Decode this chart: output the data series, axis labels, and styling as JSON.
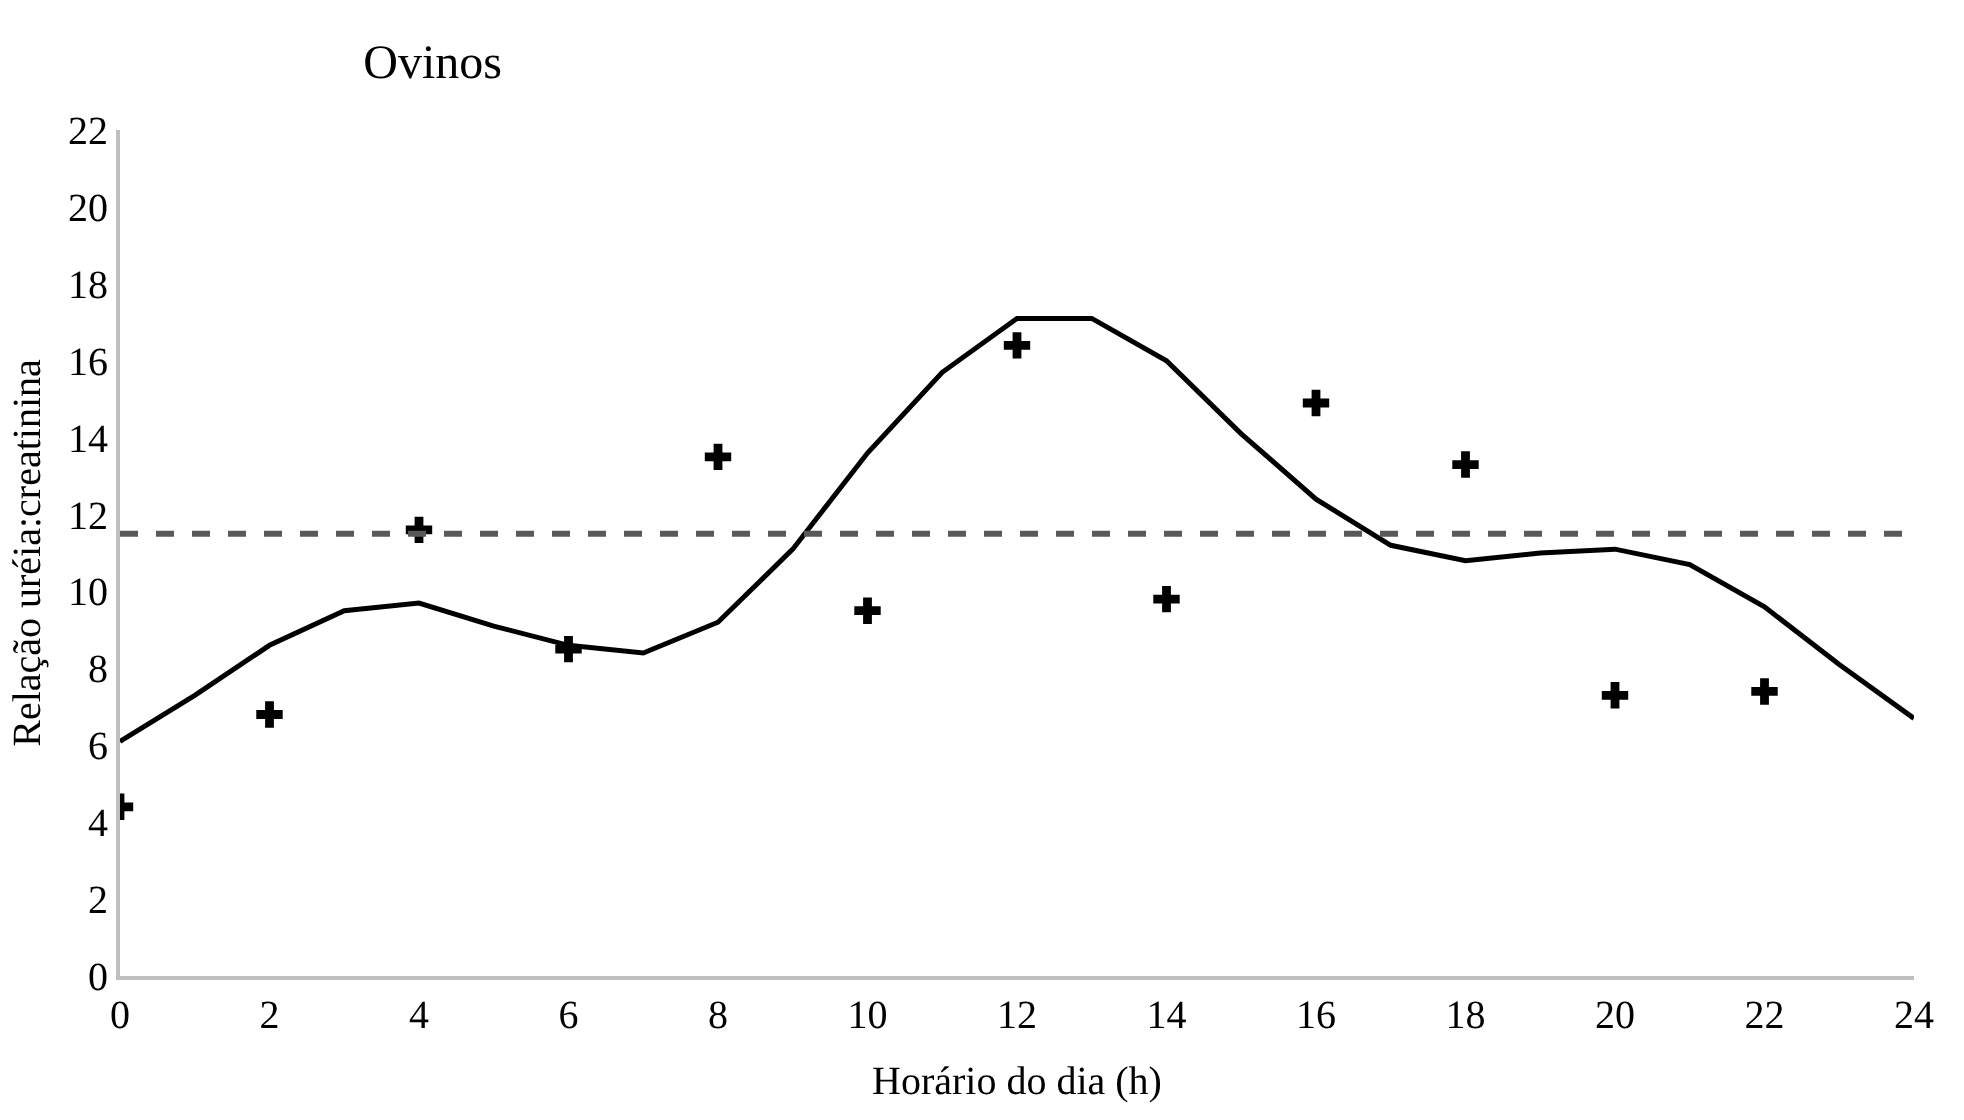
{
  "chart_data": {
    "type": "line",
    "title": "Ovinos",
    "xlabel": "Horário do dia (h)",
    "ylabel": "Relação uréia:creatinina",
    "xlim": [
      0,
      24
    ],
    "xticks": [
      0,
      2,
      4,
      6,
      8,
      10,
      12,
      14,
      16,
      18,
      20,
      22,
      24
    ],
    "ylim": [
      0,
      22
    ],
    "yticks": [
      0,
      2,
      4,
      6,
      8,
      10,
      12,
      14,
      16,
      18,
      20,
      22
    ],
    "series": [
      {
        "color": "#000000",
        "marker": "none",
        "line_style": "solid",
        "x": [
          0,
          1,
          2,
          3,
          4,
          5,
          6,
          7,
          8,
          9,
          10,
          11,
          12,
          13,
          14,
          15,
          16,
          17,
          18,
          19,
          20,
          21,
          22,
          23,
          24
        ],
        "values": [
          6.1,
          7.3,
          8.6,
          9.5,
          9.7,
          9.1,
          8.6,
          8.4,
          9.2,
          11.1,
          13.6,
          15.7,
          17.1,
          17.1,
          16.0,
          14.1,
          12.4,
          11.2,
          10.8,
          11.0,
          11.1,
          10.7,
          9.6,
          8.1,
          6.7
        ]
      },
      {
        "type": "scatter",
        "color": "#000000",
        "marker": "cross",
        "x": [
          0,
          2,
          4,
          6,
          8,
          10,
          12,
          14,
          16,
          18,
          20,
          22
        ],
        "values": [
          4.4,
          6.8,
          11.6,
          8.5,
          13.5,
          9.5,
          16.4,
          9.8,
          14.9,
          13.3,
          7.3,
          7.4
        ]
      }
    ],
    "ref_lines": [
      {
        "axis": "y",
        "value": 11.5,
        "color": "#595959",
        "line_style": "dashed"
      }
    ]
  }
}
